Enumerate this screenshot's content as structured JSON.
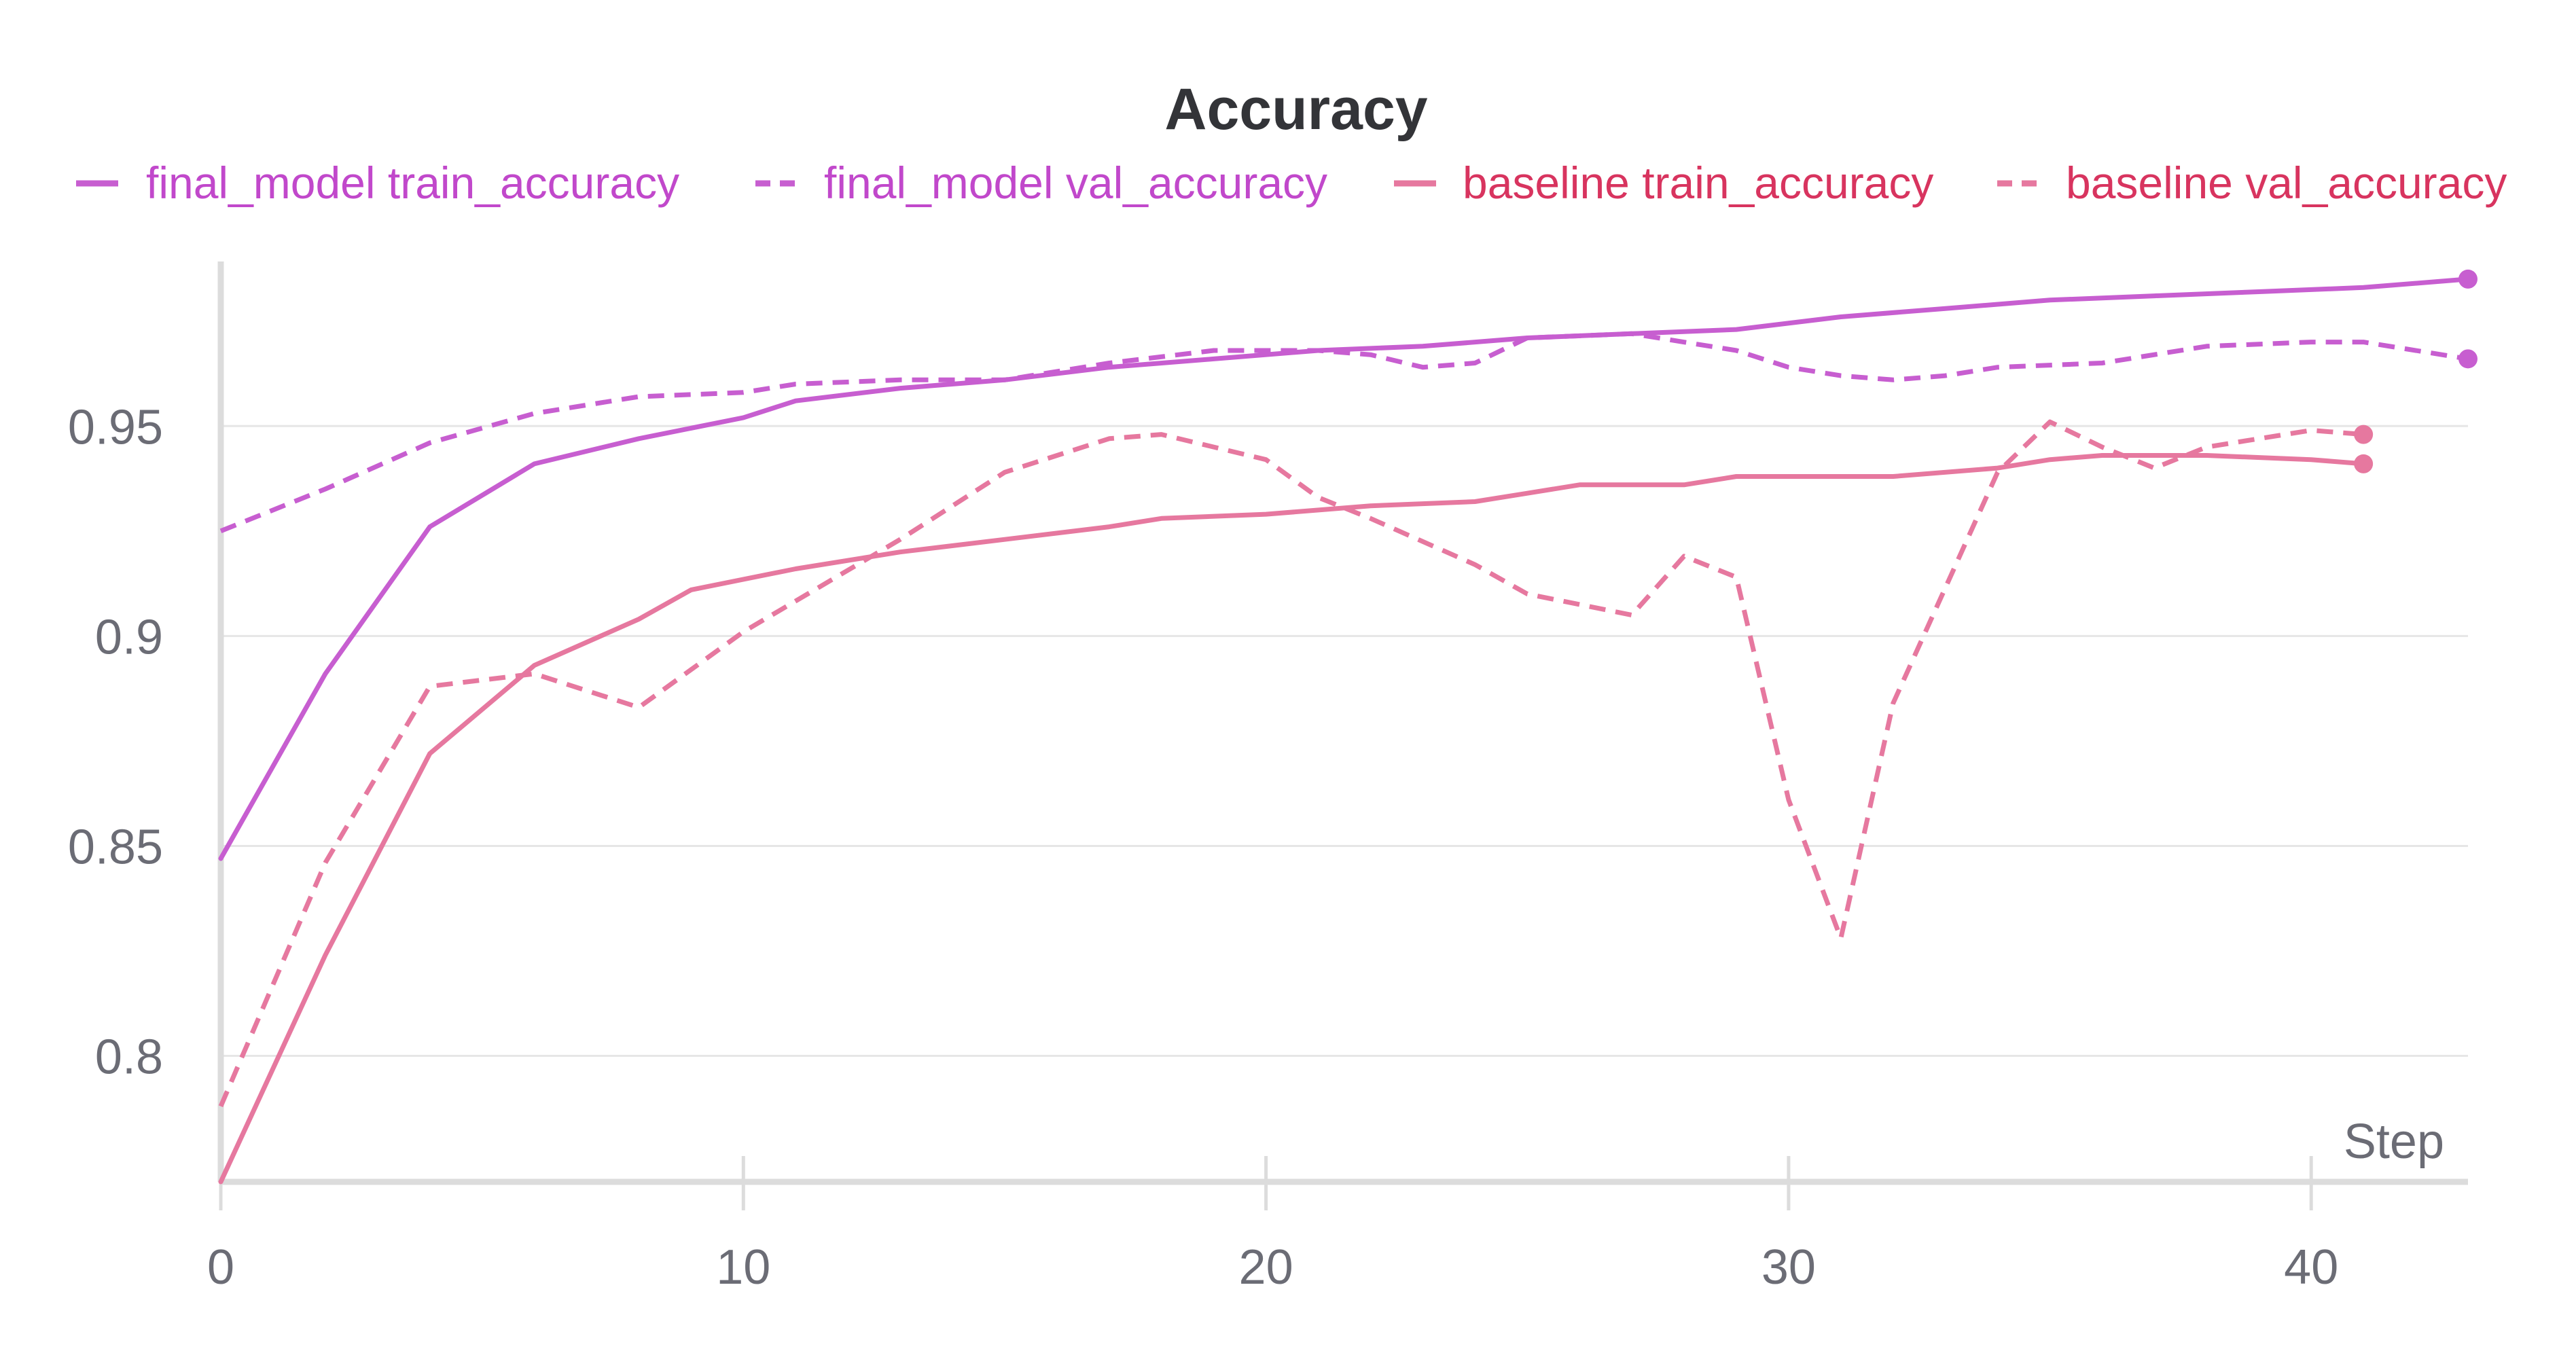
{
  "chart_data": {
    "type": "line",
    "title": "Accuracy",
    "xlabel": "Step",
    "ylabel": "",
    "xlim": [
      0,
      43
    ],
    "ylim": [
      0.77,
      0.99
    ],
    "x_ticks": [
      0,
      10,
      20,
      30,
      40
    ],
    "x_tick_labels": [
      "0",
      "10",
      "20",
      "30",
      "40"
    ],
    "y_ticks": [
      0.8,
      0.85,
      0.9,
      0.95
    ],
    "y_tick_labels": [
      "0.8",
      "0.85",
      "0.9",
      "0.95"
    ],
    "grid": "horizontal",
    "legend_position": "top",
    "colors": {
      "final_model": "#c75ed0",
      "baseline": "#e6789f",
      "final_model_label": "#c148cb",
      "baseline_label": "#d8345f",
      "title": "#333438",
      "tick": "#6b6c75",
      "grid": "#e6e6e6",
      "axis": "#dcdcdc"
    },
    "series": [
      {
        "name": "final_model train_accuracy",
        "style": "solid",
        "group": "final_model",
        "x": [
          0,
          2,
          4,
          6,
          8,
          10,
          11,
          13,
          15,
          17,
          19,
          21,
          23,
          25,
          27,
          29,
          31,
          33,
          35,
          37,
          39,
          41,
          43
        ],
        "y": [
          0.847,
          0.891,
          0.926,
          0.941,
          0.947,
          0.952,
          0.956,
          0.959,
          0.961,
          0.964,
          0.966,
          0.968,
          0.969,
          0.971,
          0.972,
          0.973,
          0.976,
          0.978,
          0.98,
          0.981,
          0.982,
          0.983,
          0.985
        ]
      },
      {
        "name": "final_model val_accuracy",
        "style": "dashed",
        "group": "final_model",
        "x": [
          0,
          2,
          4,
          6,
          8,
          10,
          11,
          13,
          15,
          17,
          19,
          21,
          22,
          23,
          24,
          25,
          27,
          29,
          30,
          31,
          32,
          33,
          34,
          36,
          38,
          40,
          41,
          43
        ],
        "y": [
          0.925,
          0.935,
          0.946,
          0.953,
          0.957,
          0.958,
          0.96,
          0.961,
          0.961,
          0.965,
          0.968,
          0.968,
          0.967,
          0.964,
          0.965,
          0.971,
          0.972,
          0.968,
          0.964,
          0.962,
          0.961,
          0.962,
          0.964,
          0.965,
          0.969,
          0.97,
          0.97,
          0.966
        ]
      },
      {
        "name": "baseline train_accuracy",
        "style": "solid",
        "group": "baseline",
        "x": [
          0,
          2,
          4,
          6,
          8,
          9,
          11,
          13,
          15,
          17,
          18,
          20,
          22,
          24,
          25,
          26,
          28,
          29,
          31,
          32,
          34,
          35,
          36,
          38,
          40,
          41
        ],
        "y": [
          0.77,
          0.824,
          0.872,
          0.893,
          0.904,
          0.911,
          0.916,
          0.92,
          0.923,
          0.926,
          0.928,
          0.929,
          0.931,
          0.932,
          0.934,
          0.936,
          0.936,
          0.938,
          0.938,
          0.938,
          0.94,
          0.942,
          0.943,
          0.943,
          0.942,
          0.941
        ]
      },
      {
        "name": "baseline val_accuracy",
        "style": "dashed",
        "group": "baseline",
        "x": [
          0,
          2,
          4,
          6,
          8,
          10,
          13,
          15,
          17,
          18,
          20,
          21,
          22,
          24,
          25,
          27,
          28,
          29,
          30,
          31,
          32,
          34,
          35,
          36,
          37,
          38,
          40,
          41
        ],
        "y": [
          0.788,
          0.846,
          0.888,
          0.891,
          0.883,
          0.901,
          0.923,
          0.939,
          0.947,
          0.948,
          0.942,
          0.933,
          0.928,
          0.917,
          0.91,
          0.905,
          0.919,
          0.914,
          0.861,
          0.828,
          0.884,
          0.939,
          0.951,
          0.945,
          0.94,
          0.945,
          0.949,
          0.948
        ]
      }
    ]
  }
}
